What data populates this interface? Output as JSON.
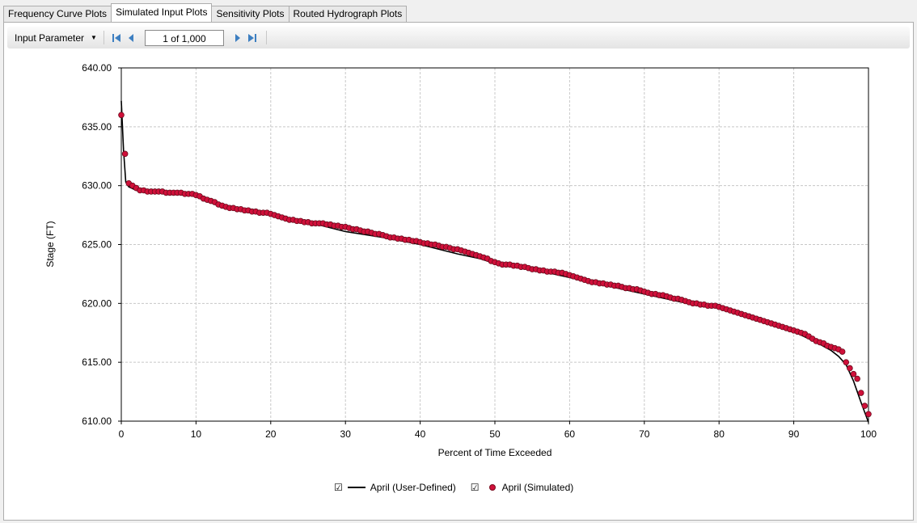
{
  "tabs": [
    {
      "label": "Frequency Curve Plots",
      "active": false
    },
    {
      "label": "Simulated Input Plots",
      "active": true
    },
    {
      "label": "Sensitivity Plots",
      "active": false
    },
    {
      "label": "Routed Hydrograph Plots",
      "active": false
    }
  ],
  "toolbar": {
    "parameter_label": "Input Parameter",
    "position_text": "1 of 1,000",
    "icons": [
      "first-icon",
      "previous-icon",
      "next-icon",
      "last-icon"
    ]
  },
  "legend": [
    {
      "checkbox": "☑",
      "label": "April (User-Defined)"
    },
    {
      "checkbox": "☑",
      "label": "April (Simulated)"
    }
  ],
  "colors": {
    "line": "#000000",
    "marker_fill": "#d0103a",
    "marker_edge": "#6b0a1c",
    "grid": "#c8c8c8"
  },
  "chart_data": {
    "type": "scatter",
    "xlabel": "Percent of Time Exceeded",
    "ylabel": "Stage (FT)",
    "xlim": [
      0,
      100
    ],
    "ylim": [
      610,
      640
    ],
    "xticks": [
      0,
      10,
      20,
      30,
      40,
      50,
      60,
      70,
      80,
      90,
      100
    ],
    "yticks": [
      610,
      615,
      620,
      625,
      630,
      635,
      640
    ],
    "ytick_labels": [
      "610.00",
      "615.00",
      "620.00",
      "625.00",
      "630.00",
      "635.00",
      "640.00"
    ],
    "grid": true,
    "legend_position": "bottom-center",
    "series": [
      {
        "name": "April (User-Defined)",
        "style": "line",
        "x": [
          0,
          0.3,
          0.6,
          1,
          2,
          5,
          8,
          10,
          12,
          15,
          20,
          25,
          30,
          35,
          40,
          45,
          48,
          50,
          55,
          60,
          65,
          70,
          75,
          80,
          85,
          90,
          93,
          95,
          96,
          97,
          98,
          99,
          100
        ],
        "y": [
          637.2,
          633,
          630.3,
          629.9,
          629.6,
          629.5,
          629.4,
          629.2,
          628.7,
          628.1,
          627.6,
          626.9,
          626.1,
          625.6,
          625.0,
          624.2,
          623.8,
          623.4,
          622.9,
          622.2,
          621.5,
          620.8,
          620.1,
          619.6,
          618.8,
          617.6,
          616.7,
          616.0,
          615.5,
          614.8,
          613.4,
          611.6,
          609.9
        ]
      },
      {
        "name": "April (Simulated)",
        "style": "markers",
        "x": [
          0,
          0.5,
          1,
          1.5,
          2,
          2.5,
          3,
          3.5,
          4,
          4.5,
          5,
          5.5,
          6,
          6.5,
          7,
          7.5,
          8,
          8.5,
          9,
          9.5,
          10,
          10.5,
          11,
          11.5,
          12,
          12.5,
          13,
          13.5,
          14,
          14.5,
          15,
          15.5,
          16,
          16.5,
          17,
          17.5,
          18,
          18.5,
          19,
          19.5,
          20,
          20.5,
          21,
          21.5,
          22,
          22.5,
          23,
          23.5,
          24,
          24.5,
          25,
          25.5,
          26,
          26.5,
          27,
          27.5,
          28,
          28.5,
          29,
          29.5,
          30,
          30.5,
          31,
          31.5,
          32,
          32.5,
          33,
          33.5,
          34,
          34.5,
          35,
          35.5,
          36,
          36.5,
          37,
          37.5,
          38,
          38.5,
          39,
          39.5,
          40,
          40.5,
          41,
          41.5,
          42,
          42.5,
          43,
          43.5,
          44,
          44.5,
          45,
          45.5,
          46,
          46.5,
          47,
          47.5,
          48,
          48.5,
          49,
          49.5,
          50,
          50.5,
          51,
          51.5,
          52,
          52.5,
          53,
          53.5,
          54,
          54.5,
          55,
          55.5,
          56,
          56.5,
          57,
          57.5,
          58,
          58.5,
          59,
          59.5,
          60,
          60.5,
          61,
          61.5,
          62,
          62.5,
          63,
          63.5,
          64,
          64.5,
          65,
          65.5,
          66,
          66.5,
          67,
          67.5,
          68,
          68.5,
          69,
          69.5,
          70,
          70.5,
          71,
          71.5,
          72,
          72.5,
          73,
          73.5,
          74,
          74.5,
          75,
          75.5,
          76,
          76.5,
          77,
          77.5,
          78,
          78.5,
          79,
          79.5,
          80,
          80.5,
          81,
          81.5,
          82,
          82.5,
          83,
          83.5,
          84,
          84.5,
          85,
          85.5,
          86,
          86.5,
          87,
          87.5,
          88,
          88.5,
          89,
          89.5,
          90,
          90.5,
          91,
          91.5,
          92,
          92.5,
          93,
          93.5,
          94,
          94.5,
          95,
          95.5,
          96,
          96.5,
          97,
          97.5,
          98,
          98.5,
          99,
          99.5,
          100
        ],
        "y": [
          636.0,
          632.7,
          630.2,
          630.0,
          629.8,
          629.6,
          629.6,
          629.5,
          629.5,
          629.5,
          629.5,
          629.5,
          629.4,
          629.4,
          629.4,
          629.4,
          629.4,
          629.3,
          629.3,
          629.3,
          629.2,
          629.1,
          628.9,
          628.8,
          628.7,
          628.6,
          628.4,
          628.3,
          628.2,
          628.1,
          628.1,
          628.0,
          628.0,
          627.9,
          627.9,
          627.8,
          627.8,
          627.7,
          627.7,
          627.7,
          627.6,
          627.5,
          627.4,
          627.3,
          627.2,
          627.1,
          627.1,
          627.0,
          627.0,
          626.9,
          626.9,
          626.8,
          626.8,
          626.8,
          626.8,
          626.7,
          626.7,
          626.6,
          626.6,
          626.5,
          626.5,
          626.4,
          626.3,
          626.3,
          626.2,
          626.1,
          626.1,
          626.0,
          625.9,
          625.9,
          625.8,
          625.7,
          625.6,
          625.6,
          625.5,
          625.5,
          625.4,
          625.4,
          625.3,
          625.3,
          625.2,
          625.1,
          625.1,
          625.0,
          625.0,
          624.9,
          624.8,
          624.8,
          624.7,
          624.6,
          624.6,
          624.5,
          624.4,
          624.3,
          624.2,
          624.1,
          624.0,
          623.9,
          623.8,
          623.6,
          623.5,
          623.4,
          623.3,
          623.3,
          623.3,
          623.2,
          623.2,
          623.1,
          623.1,
          623.0,
          622.9,
          622.9,
          622.8,
          622.8,
          622.7,
          622.7,
          622.7,
          622.6,
          622.6,
          622.5,
          622.4,
          622.3,
          622.2,
          622.1,
          622.0,
          621.9,
          621.8,
          621.8,
          621.7,
          621.7,
          621.6,
          621.6,
          621.5,
          621.5,
          621.4,
          621.3,
          621.3,
          621.2,
          621.2,
          621.1,
          621.0,
          620.9,
          620.8,
          620.8,
          620.7,
          620.7,
          620.6,
          620.5,
          620.4,
          620.4,
          620.3,
          620.2,
          620.1,
          620.0,
          620.0,
          619.9,
          619.9,
          619.8,
          619.8,
          619.8,
          619.7,
          619.6,
          619.5,
          619.4,
          619.3,
          619.2,
          619.1,
          619.0,
          618.9,
          618.8,
          618.7,
          618.6,
          618.5,
          618.4,
          618.3,
          618.2,
          618.1,
          618.0,
          617.9,
          617.8,
          617.7,
          617.6,
          617.5,
          617.4,
          617.2,
          617.0,
          616.8,
          616.7,
          616.6,
          616.4,
          616.3,
          616.2,
          616.1,
          615.9,
          615.0,
          614.5,
          614.0,
          613.6,
          612.4,
          611.3,
          610.6
        ]
      }
    ]
  }
}
